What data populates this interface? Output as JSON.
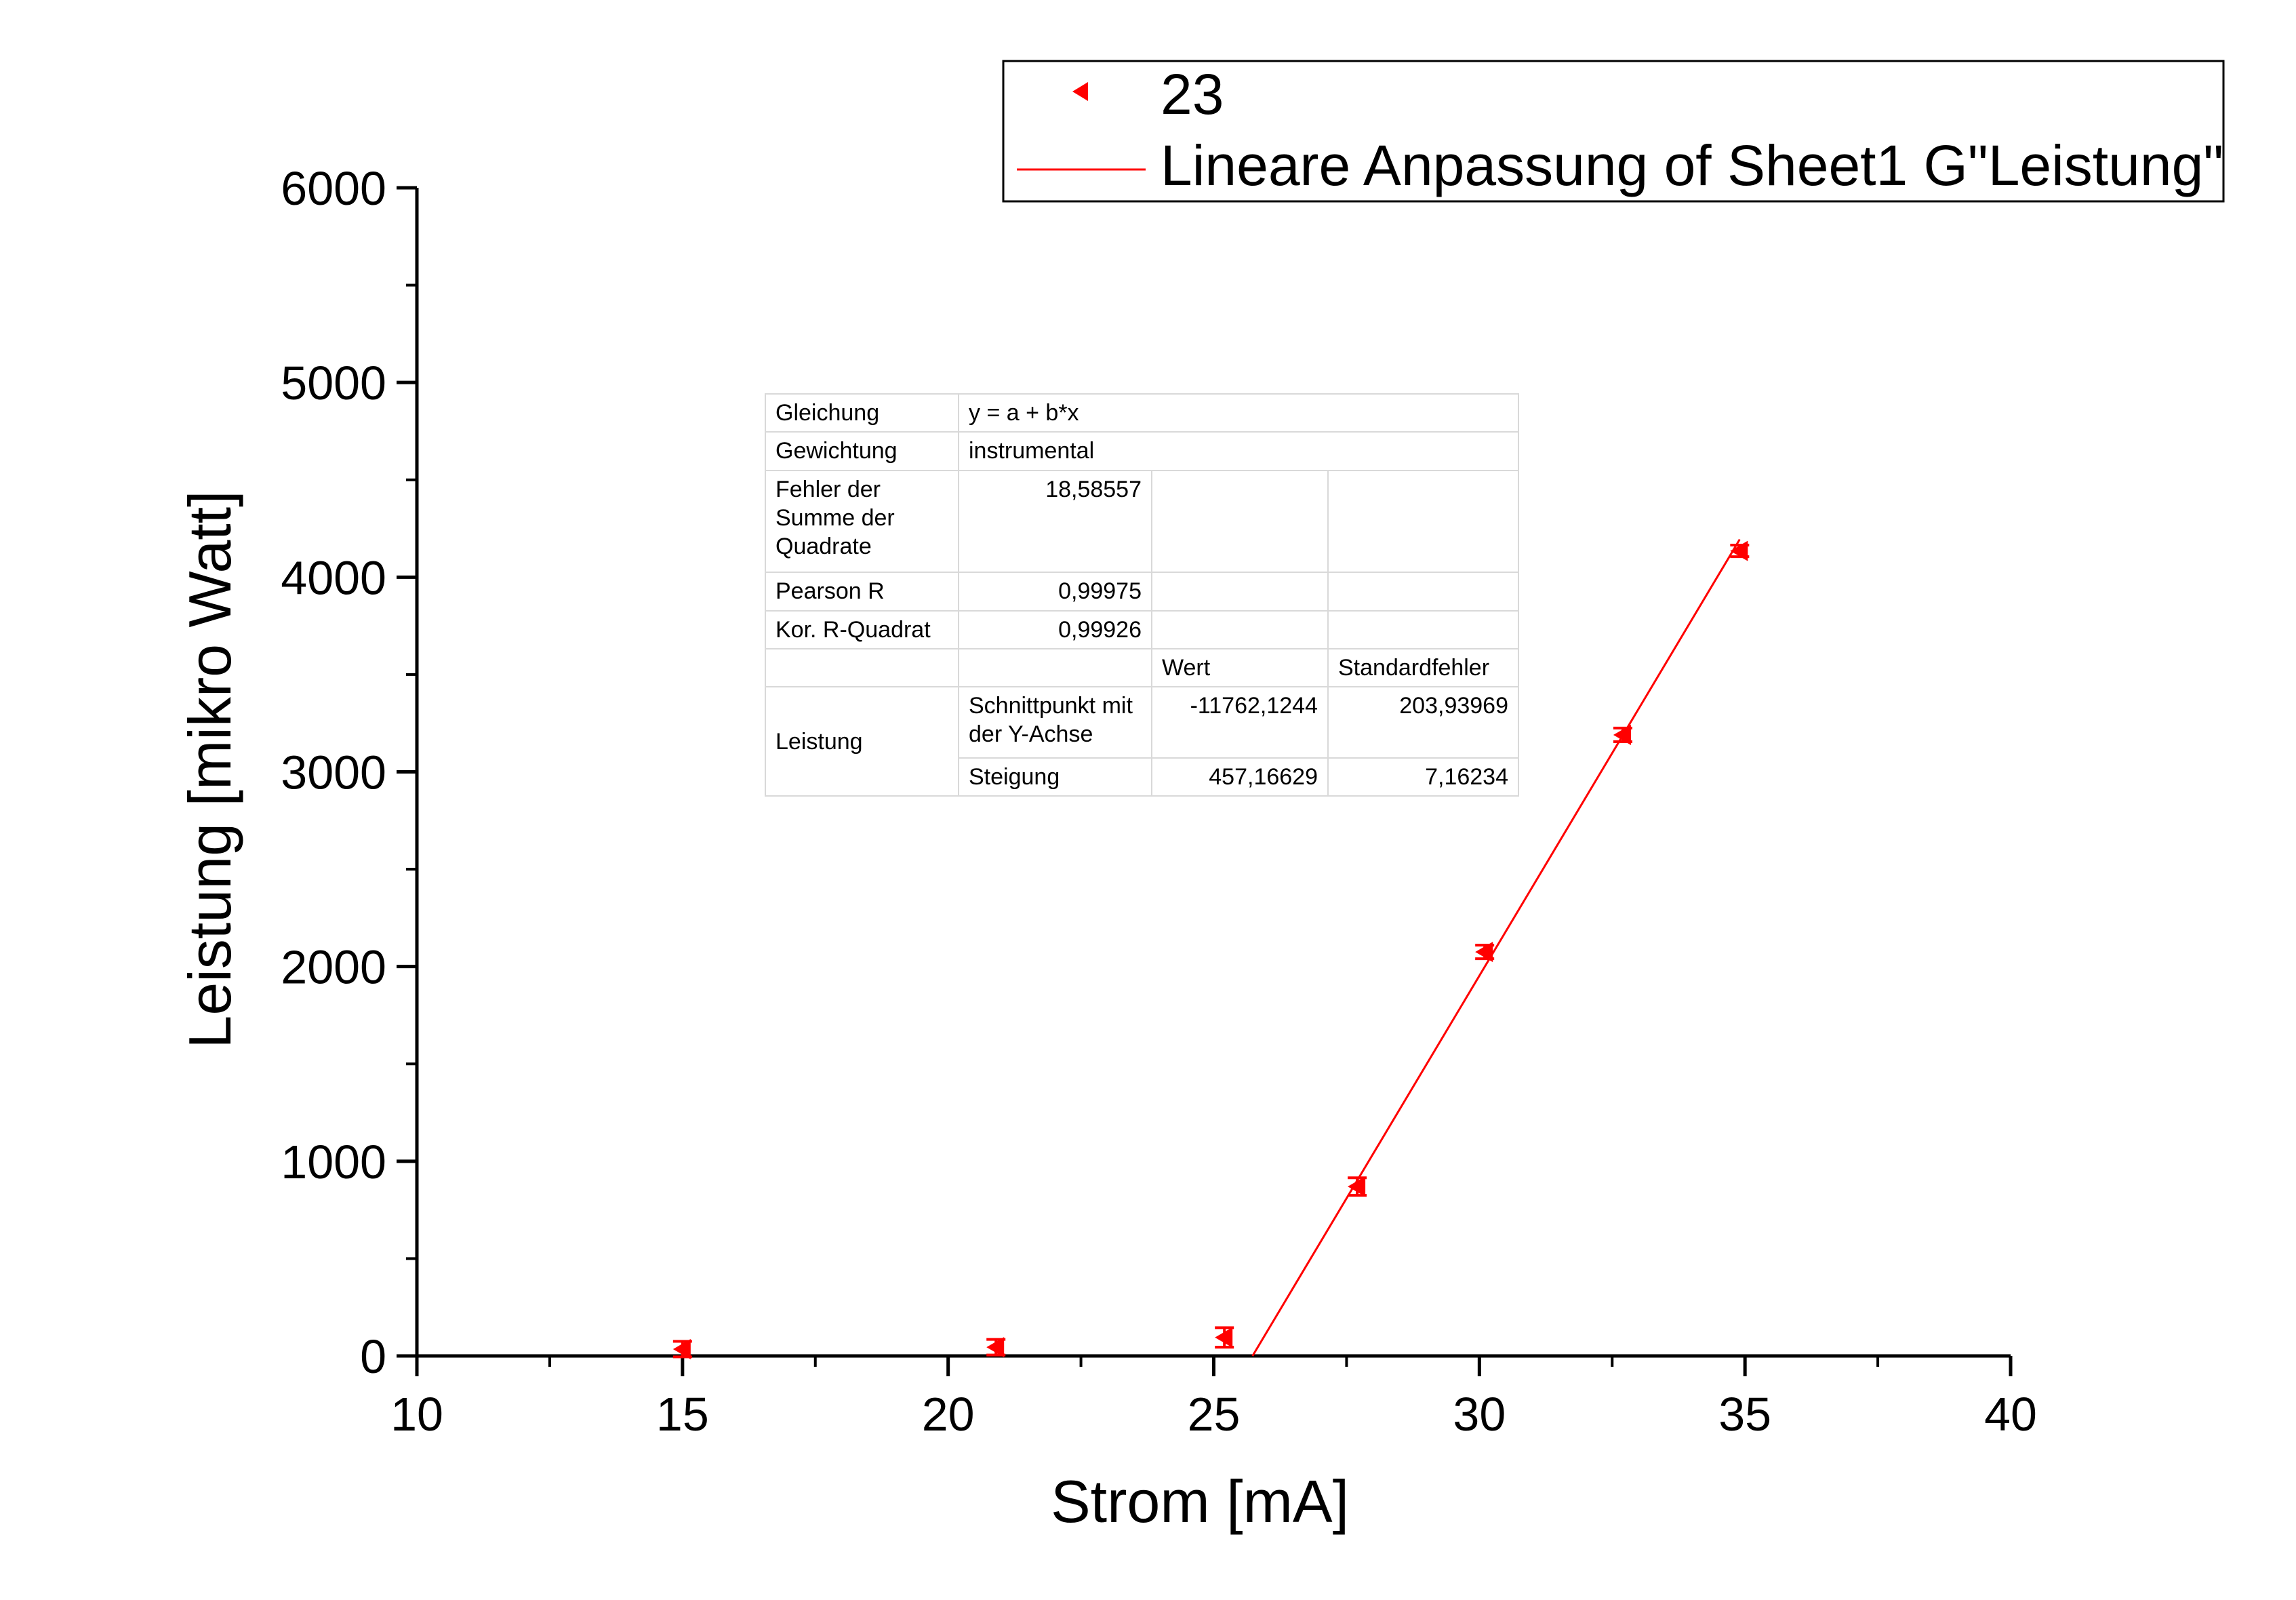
{
  "chart_data": {
    "type": "scatter",
    "xlabel": "Strom [mA]",
    "ylabel": "Leistung [mikro Watt]",
    "xlim": [
      10,
      40
    ],
    "ylim": [
      0,
      6000
    ],
    "xticks": [
      10,
      15,
      20,
      25,
      30,
      35,
      40
    ],
    "yticks": [
      0,
      1000,
      2000,
      3000,
      4000,
      5000,
      6000
    ],
    "legend_position": "top-right",
    "grid": false,
    "series": [
      {
        "name": "23",
        "kind": "scatter",
        "marker": "left-triangle",
        "color": "#ff0000",
        "x": [
          15.0,
          20.9,
          25.2,
          27.7,
          30.1,
          32.7,
          34.9
        ],
        "y": [
          35,
          45,
          95,
          870,
          2075,
          3190,
          4135
        ],
        "yerr": [
          40,
          40,
          50,
          45,
          35,
          35,
          30
        ]
      },
      {
        "name": "Lineare Anpassung of Sheet1 G\"Leistung\"",
        "kind": "line",
        "color": "#ff0000",
        "x": [
          25.73,
          34.9
        ],
        "y": [
          0,
          4193.9
        ]
      }
    ],
    "stats_table": {
      "rows": [
        [
          "Gleichung",
          "y = a + b*x"
        ],
        [
          "Gewichtung",
          "instrumental"
        ],
        [
          "Fehler der\nSumme der\nQuadrate",
          "18,58557",
          "",
          ""
        ],
        [
          "Pearson R",
          "0,99975",
          "",
          ""
        ],
        [
          "Kor. R-Quadrat",
          "0,99926",
          "",
          ""
        ],
        [
          "",
          "",
          "Wert",
          "Standardfehler"
        ],
        [
          "Leistung",
          "Schnittpunkt mit\n der Y-Achse",
          "-11762,1244",
          "203,93969"
        ],
        [
          "",
          "Steigung",
          "457,16629",
          "7,16234"
        ]
      ]
    }
  }
}
